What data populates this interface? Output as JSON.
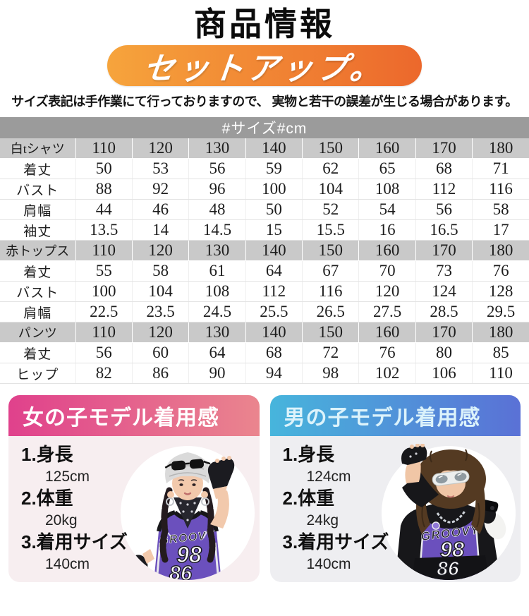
{
  "page": {
    "title": "商品情報",
    "badge": "セットアップ。",
    "caption": "サイズ表記は手作業にて行っておりますので、 実物と若干の誤差が生じる場合があります。"
  },
  "size_table": {
    "header": "#サイズ#cm",
    "sections": [
      {
        "name": "白tシャツ",
        "sizes": [
          "110",
          "120",
          "130",
          "140",
          "150",
          "160",
          "170",
          "180"
        ],
        "rows": [
          {
            "label": "着丈",
            "values": [
              "50",
              "53",
              "56",
              "59",
              "62",
              "65",
              "68",
              "71"
            ]
          },
          {
            "label": "バスト",
            "values": [
              "88",
              "92",
              "96",
              "100",
              "104",
              "108",
              "112",
              "116"
            ]
          },
          {
            "label": "肩幅",
            "values": [
              "44",
              "46",
              "48",
              "50",
              "52",
              "54",
              "56",
              "58"
            ]
          },
          {
            "label": "袖丈",
            "values": [
              "13.5",
              "14",
              "14.5",
              "15",
              "15.5",
              "16",
              "16.5",
              "17"
            ]
          }
        ]
      },
      {
        "name": "赤トップス",
        "sizes": [
          "110",
          "120",
          "130",
          "140",
          "150",
          "160",
          "170",
          "180"
        ],
        "rows": [
          {
            "label": "着丈",
            "values": [
              "55",
              "58",
              "61",
              "64",
              "67",
              "70",
              "73",
              "76"
            ]
          },
          {
            "label": "バスト",
            "values": [
              "100",
              "104",
              "108",
              "112",
              "116",
              "120",
              "124",
              "128"
            ]
          },
          {
            "label": "肩幅",
            "values": [
              "22.5",
              "23.5",
              "24.5",
              "25.5",
              "26.5",
              "27.5",
              "28.5",
              "29.5"
            ]
          }
        ]
      },
      {
        "name": "パンツ",
        "sizes": [
          "110",
          "120",
          "130",
          "140",
          "150",
          "160",
          "170",
          "180"
        ],
        "rows": [
          {
            "label": "着丈",
            "values": [
              "56",
              "60",
              "64",
              "68",
              "72",
              "76",
              "80",
              "85"
            ]
          },
          {
            "label": "ヒップ",
            "values": [
              "82",
              "86",
              "90",
              "94",
              "98",
              "102",
              "106",
              "110"
            ]
          }
        ]
      }
    ]
  },
  "models": [
    {
      "title": "女の子モデル着用感",
      "items": [
        {
          "label": "1.身長",
          "value": "125cm"
        },
        {
          "label": "2.体重",
          "value": "20kg"
        },
        {
          "label": "3.着用サイズ",
          "value": "140cm"
        }
      ],
      "photo": {
        "brand": "GROOVY",
        "number_top": "98",
        "number_bottom": "86"
      }
    },
    {
      "title": "男の子モデル着用感",
      "items": [
        {
          "label": "1.身長",
          "value": "124cm"
        },
        {
          "label": "2.体重",
          "value": "24kg"
        },
        {
          "label": "3.着用サイズ",
          "value": "140cm"
        }
      ],
      "photo": {
        "brand": "GROOVY",
        "number_top": "98",
        "number_bottom": "86"
      }
    }
  ],
  "colors": {
    "badge_gradient_left": "#f6a43c",
    "badge_gradient_right": "#ec682c",
    "table_bar_bg": "#9b9b9b",
    "table_size_row_bg": "#c9c9c9",
    "girl_header_left": "#e0418c",
    "girl_header_right": "#ea858e",
    "girl_body_bg": "#f7eef0",
    "boy_header_left": "#47b5dc",
    "boy_header_right": "#5a71d6",
    "boy_body_bg": "#eeeef1",
    "jersey_purple": "#6b50bd"
  }
}
